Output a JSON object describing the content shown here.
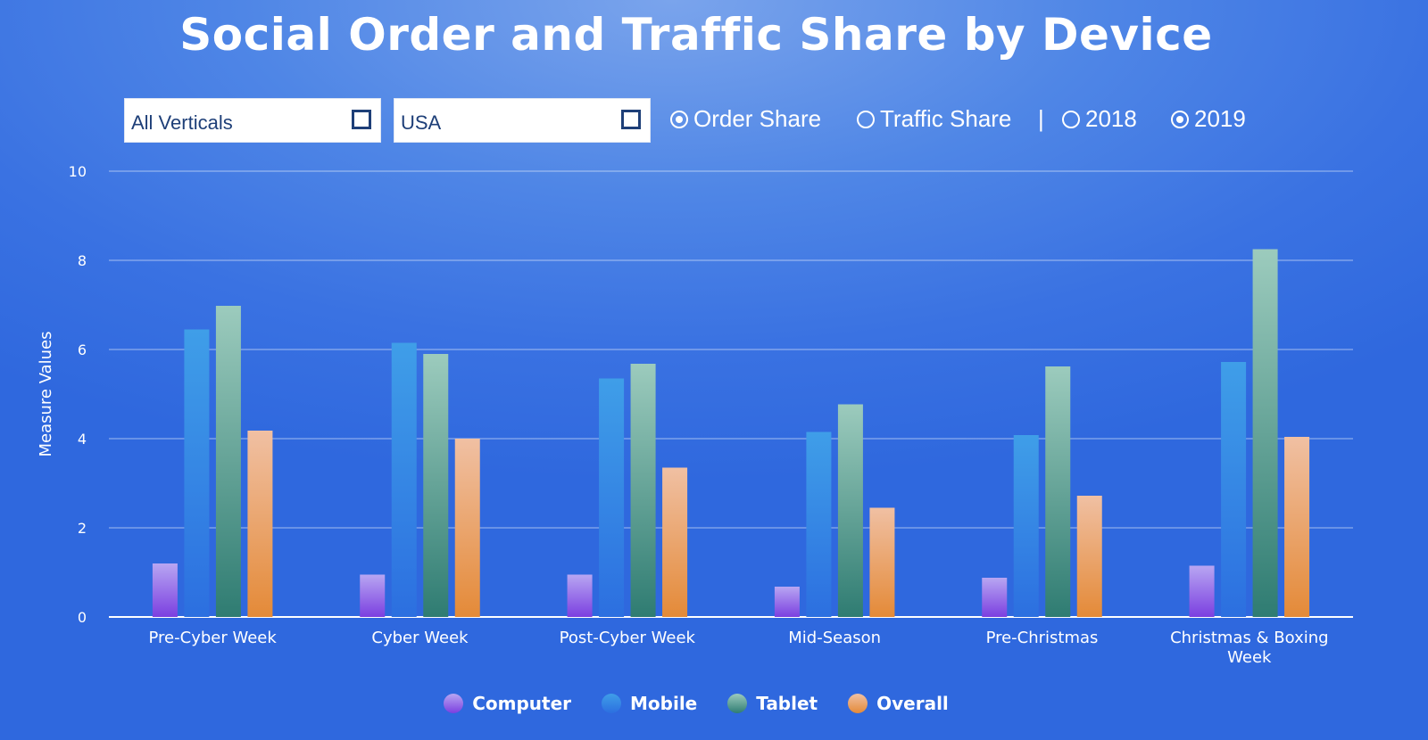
{
  "page": {
    "title": "Social Order and Traffic Share by Device"
  },
  "filters": {
    "vertical_dropdown": {
      "value": "All Verticals"
    },
    "country_dropdown": {
      "value": "USA"
    },
    "measure_options": [
      {
        "label": "Order Share",
        "selected": true
      },
      {
        "label": "Traffic Share",
        "selected": false
      }
    ],
    "separator": "|",
    "year_options": [
      {
        "label": "2018",
        "selected": false
      },
      {
        "label": "2019",
        "selected": true
      }
    ]
  },
  "colors": {
    "Computer": [
      "#b8a6f2",
      "#7b3fe0"
    ],
    "Mobile": [
      "#3f9ee8",
      "#2c6fe0"
    ],
    "Tablet": [
      "#9ccbbd",
      "#2f7c72"
    ],
    "Overall": [
      "#f0c0a3",
      "#e48a38"
    ]
  },
  "chart_data": {
    "type": "bar",
    "ylabel": "Measure Values",
    "xlabel": "",
    "ylim": [
      0,
      10
    ],
    "yticks": [
      0,
      2,
      4,
      6,
      8,
      10
    ],
    "grid": true,
    "legend_position": "bottom",
    "categories": [
      "Pre-Cyber Week",
      "Cyber Week",
      "Post-Cyber Week",
      "Mid-Season",
      "Pre-Christmas",
      "Christmas & Boxing Week"
    ],
    "series": [
      {
        "name": "Computer",
        "values": [
          1.2,
          0.95,
          0.95,
          0.68,
          0.88,
          1.15
        ]
      },
      {
        "name": "Mobile",
        "values": [
          6.45,
          6.15,
          5.35,
          4.15,
          4.08,
          5.72
        ]
      },
      {
        "name": "Tablet",
        "values": [
          6.98,
          5.9,
          5.68,
          4.77,
          5.62,
          8.25
        ]
      },
      {
        "name": "Overall",
        "values": [
          4.18,
          4.0,
          3.35,
          2.45,
          2.72,
          4.04
        ]
      }
    ]
  }
}
